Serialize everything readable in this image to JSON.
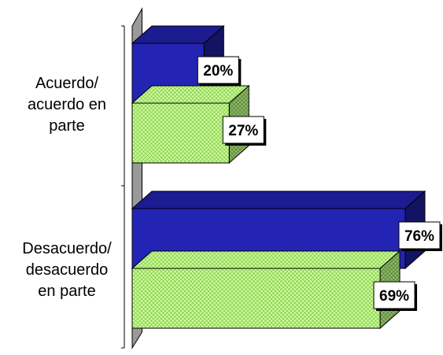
{
  "chart_data": {
    "type": "bar",
    "orientation": "horizontal",
    "three_d": true,
    "categories": [
      "Acuerdo/\nacuerdo en\nparte",
      "Desacuerdo/\ndesacuerdo\nen parte"
    ],
    "series": [
      {
        "values": [
          20,
          76
        ],
        "color": "#2323b4",
        "pattern": "solid"
      },
      {
        "values": [
          27,
          69
        ],
        "color": "#ccff99",
        "pattern": "crosshatch"
      }
    ],
    "data_labels": [
      [
        "20%",
        "76%"
      ],
      [
        "27%",
        "69%"
      ]
    ],
    "value_unit": "%",
    "xlim": [
      0,
      100
    ],
    "grid": false,
    "legend": "none",
    "title": "",
    "xlabel": "",
    "ylabel": ""
  }
}
